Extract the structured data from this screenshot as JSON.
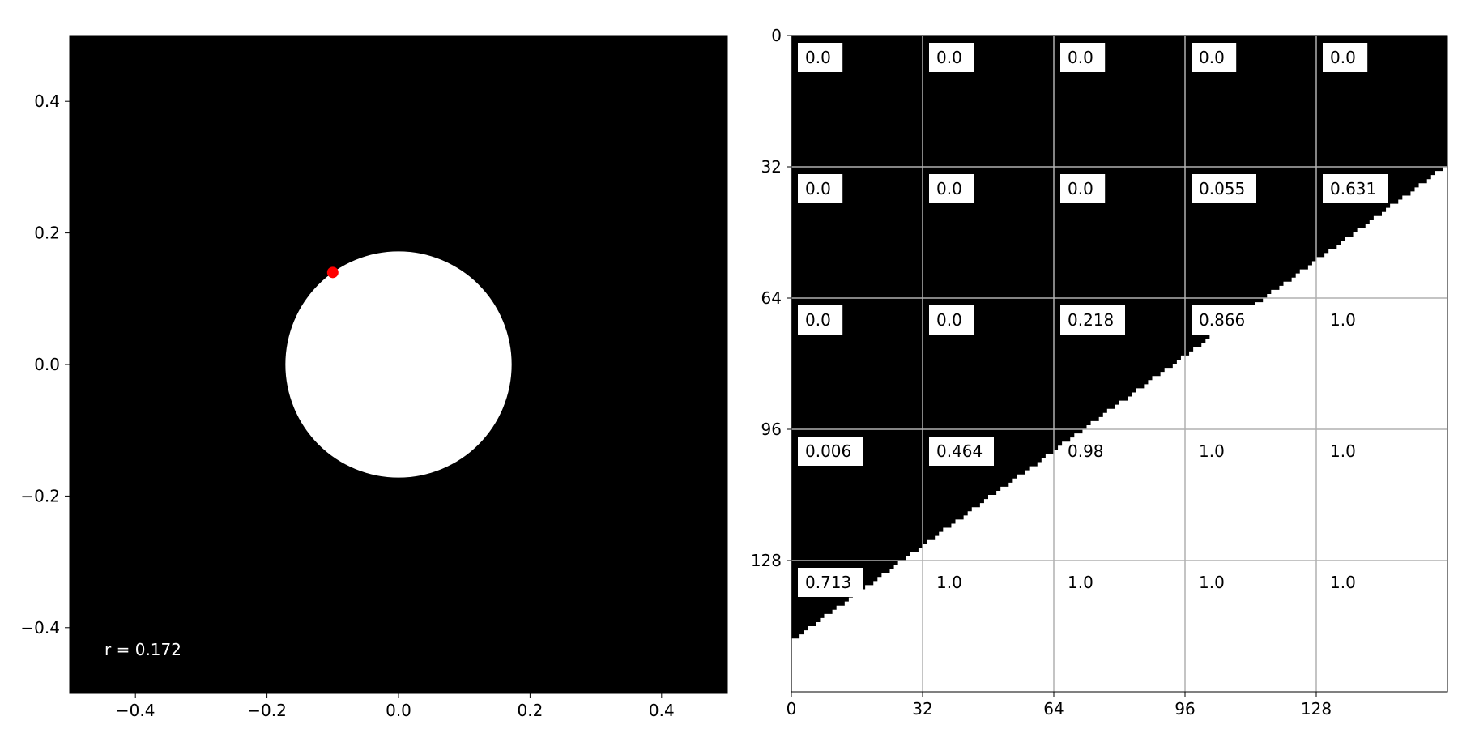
{
  "chart_data": [
    {
      "type": "scatter",
      "xlim": [
        -0.5,
        0.5
      ],
      "ylim": [
        -0.5,
        0.5
      ],
      "xticks": [
        -0.4,
        -0.2,
        0.0,
        0.2,
        0.4
      ],
      "yticks": [
        -0.4,
        -0.2,
        0.0,
        0.2,
        0.4
      ],
      "xtick_labels": [
        "−0.4",
        "−0.2",
        "0.0",
        "0.2",
        "0.4"
      ],
      "ytick_labels": [
        "−0.4",
        "−0.2",
        "0.0",
        "0.2",
        "0.4"
      ],
      "grid": false,
      "background_color": "#000000",
      "circle": {
        "center": [
          0.0,
          0.0
        ],
        "radius": 0.172,
        "color": "#ffffff"
      },
      "points": [
        {
          "x": -0.1,
          "y": 0.14,
          "color": "#ff0000"
        }
      ],
      "annotation": "r = 0.172"
    },
    {
      "type": "heatmap",
      "xlim": [
        0,
        160
      ],
      "ylim": [
        160,
        0
      ],
      "cell_size": 32,
      "xticks": [
        0,
        32,
        64,
        96,
        128
      ],
      "yticks": [
        0,
        32,
        64,
        96,
        128
      ],
      "xtick_labels": [
        "0",
        "32",
        "64",
        "96",
        "128"
      ],
      "ytick_labels": [
        "0",
        "32",
        "64",
        "96",
        "128"
      ],
      "grid": true,
      "boundary": {
        "x0": 0,
        "y0": 148,
        "x1": 160,
        "y1": 32,
        "above_color": "#000000",
        "below_color": "#ffffff"
      },
      "cell_labels": [
        [
          "0.0",
          "0.0",
          "0.0",
          "0.0",
          "0.0"
        ],
        [
          "0.0",
          "0.0",
          "0.0",
          "0.055",
          "0.631"
        ],
        [
          "0.0",
          "0.0",
          "0.218",
          "0.866",
          "1.0"
        ],
        [
          "0.006",
          "0.464",
          "0.98",
          "1.0",
          "1.0"
        ],
        [
          "0.713",
          "1.0",
          "1.0",
          "1.0",
          "1.0"
        ]
      ]
    }
  ]
}
